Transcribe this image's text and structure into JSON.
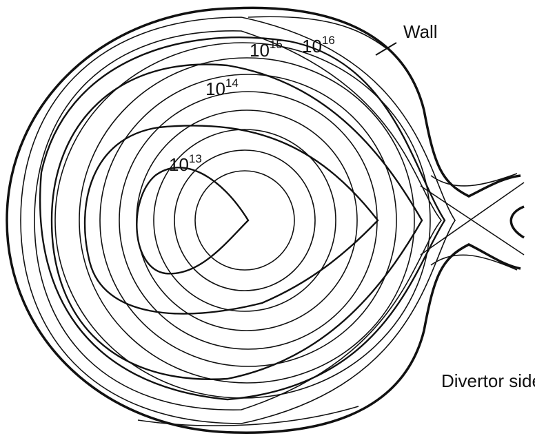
{
  "labels": {
    "wall": "Wall",
    "divertor_side": "Divertor side"
  },
  "contours": [
    {
      "base": "10",
      "exponent": "13"
    },
    {
      "base": "10",
      "exponent": "14"
    },
    {
      "base": "10",
      "exponent": "15"
    },
    {
      "base": "10",
      "exponent": "16"
    }
  ]
}
